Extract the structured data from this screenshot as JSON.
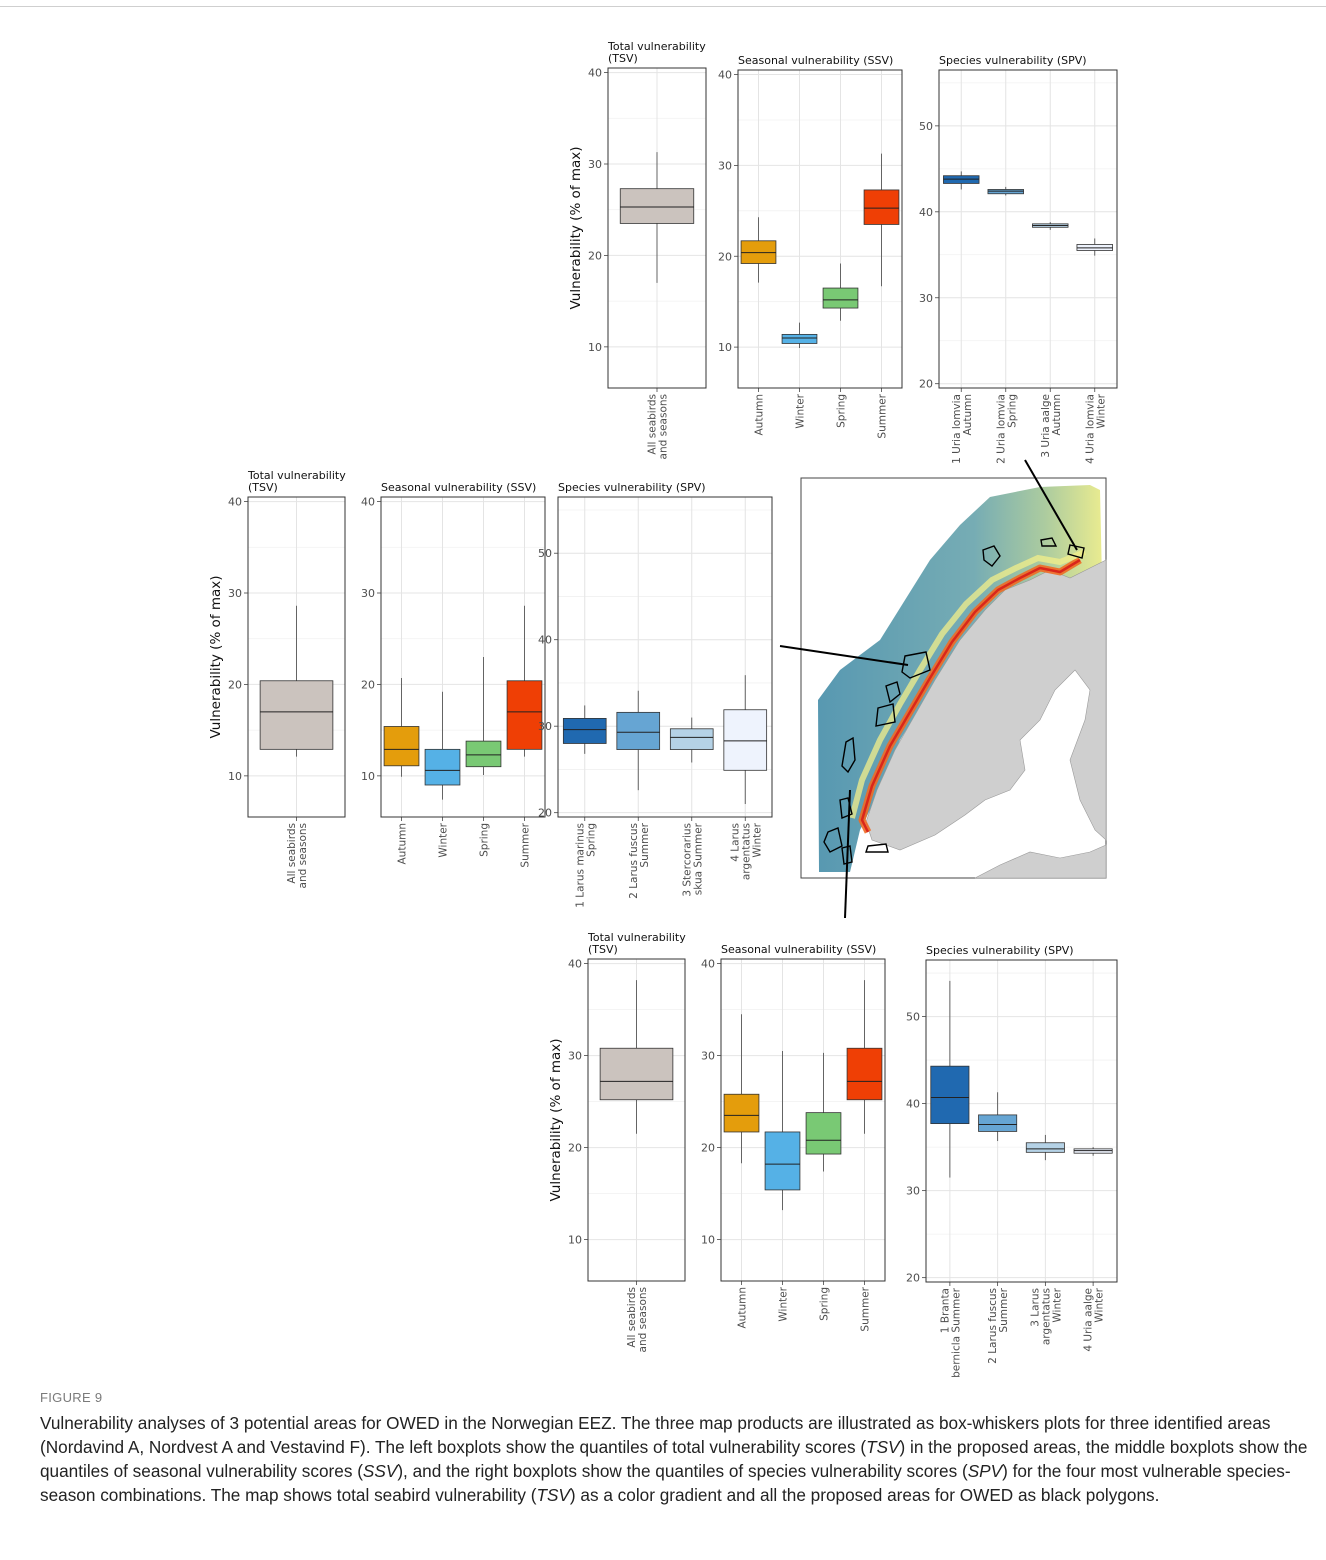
{
  "figure_label": "FIGURE 9",
  "caption": {
    "segments": [
      {
        "t": "Vulnerability analyses of 3 potential areas for OWED in the Norwegian EEZ. The three map products are illustrated as box-whiskers plots for three identified areas (Nordavind A, Nordvest A and Vestavind F). The left boxplots show the quantiles of total vulnerability scores ("
      },
      {
        "t": "TSV",
        "i": true
      },
      {
        "t": ") in the proposed areas, the middle boxplots show the quantiles of seasonal vulnerability scores ("
      },
      {
        "t": "SSV",
        "i": true
      },
      {
        "t": "), and the right boxplots show the quantiles of species vulnerability scores ("
      },
      {
        "t": "SPV",
        "i": true
      },
      {
        "t": ") for the four most vulnerable species-season combinations. The map shows total seabird vulnerability ("
      },
      {
        "t": "TSV",
        "i": true
      },
      {
        "t": ") as a color gradient and all the proposed areas for OWED as black polygons."
      }
    ]
  },
  "colors": {
    "total": "#cbc3be",
    "seasons": [
      "#e49d0c",
      "#55b1e6",
      "#79c974",
      "#ef3f05"
    ],
    "species": [
      "#2069b0",
      "#66a5d3",
      "#b5d2e6",
      "#eef3fd"
    ],
    "panel_border": "#333333",
    "grid": "#e6e6e6",
    "map_sea": "#5f9db2",
    "map_land": "#cfcfcf"
  },
  "chart_data": [
    {
      "group": "top",
      "type": "boxplot",
      "panels": [
        {
          "title": [
            "Total vulnerability",
            "(TSV)"
          ],
          "ylabel": "Vulnerability (% of max)",
          "ylim": [
            5.5,
            40.5
          ],
          "yticks": [
            10,
            20,
            30,
            40
          ],
          "boxes": [
            {
              "label": [
                "All seabirds",
                "and seasons"
              ],
              "q1": 23.5,
              "median": 25.3,
              "q3": 27.3,
              "min": 17.0,
              "max": 31.3,
              "fill": "#cbc3be"
            }
          ]
        },
        {
          "title": [
            "Seasonal vulnerability (SSV)"
          ],
          "ylim": [
            5.5,
            40.5
          ],
          "yticks": [
            10,
            20,
            30,
            40
          ],
          "boxes": [
            {
              "label": [
                "Autumn"
              ],
              "q1": 19.2,
              "median": 20.4,
              "q3": 21.7,
              "min": 17.1,
              "max": 24.3,
              "fill": "#e49d0c"
            },
            {
              "label": [
                "Winter"
              ],
              "q1": 10.4,
              "median": 11.0,
              "q3": 11.4,
              "min": 9.9,
              "max": 12.7,
              "fill": "#55b1e6"
            },
            {
              "label": [
                "Spring"
              ],
              "q1": 14.3,
              "median": 15.2,
              "q3": 16.5,
              "min": 12.9,
              "max": 19.2,
              "fill": "#79c974"
            },
            {
              "label": [
                "Summer"
              ],
              "q1": 23.5,
              "median": 25.3,
              "q3": 27.3,
              "min": 16.7,
              "max": 31.3,
              "fill": "#ef3f05"
            }
          ]
        },
        {
          "title": [
            "Species vulnerability (SPV)"
          ],
          "ylim": [
            19.5,
            56.5
          ],
          "yticks": [
            20,
            30,
            40,
            50
          ],
          "boxes": [
            {
              "label": [
                "1 Uria lomvia",
                "Autumn"
              ],
              "q1": 43.3,
              "median": 43.8,
              "q3": 44.2,
              "min": 42.6,
              "max": 44.7,
              "fill": "#2069b0"
            },
            {
              "label": [
                "2 Uria lomvia",
                "Spring"
              ],
              "q1": 42.1,
              "median": 42.4,
              "q3": 42.6,
              "min": 41.9,
              "max": 42.9,
              "fill": "#66a5d3"
            },
            {
              "label": [
                "3 Uria aalge",
                "Autumn"
              ],
              "q1": 38.2,
              "median": 38.4,
              "q3": 38.6,
              "min": 37.9,
              "max": 38.8,
              "fill": "#b5d2e6"
            },
            {
              "label": [
                "4 Uria lomvia",
                "Winter"
              ],
              "q1": 35.5,
              "median": 35.8,
              "q3": 36.2,
              "min": 34.9,
              "max": 36.9,
              "fill": "#eef3fd"
            }
          ]
        }
      ]
    },
    {
      "group": "middle",
      "type": "boxplot",
      "panels": [
        {
          "title": [
            "Total vulnerability",
            "(TSV)"
          ],
          "ylabel": "Vulnerability (% of max)",
          "ylim": [
            5.5,
            40.5
          ],
          "yticks": [
            10,
            20,
            30,
            40
          ],
          "boxes": [
            {
              "label": [
                "All seabirds",
                "and seasons"
              ],
              "q1": 12.9,
              "median": 17.0,
              "q3": 20.4,
              "min": 12.1,
              "max": 28.6,
              "fill": "#cbc3be"
            }
          ]
        },
        {
          "title": [
            "Seasonal vulnerability (SSV)"
          ],
          "ylim": [
            5.5,
            40.5
          ],
          "yticks": [
            10,
            20,
            30,
            40
          ],
          "boxes": [
            {
              "label": [
                "Autumn"
              ],
              "q1": 11.1,
              "median": 12.9,
              "q3": 15.4,
              "min": 9.9,
              "max": 20.7,
              "fill": "#e49d0c"
            },
            {
              "label": [
                "Winter"
              ],
              "q1": 9.0,
              "median": 10.6,
              "q3": 12.9,
              "min": 7.4,
              "max": 19.2,
              "fill": "#55b1e6"
            },
            {
              "label": [
                "Spring"
              ],
              "q1": 11.0,
              "median": 12.3,
              "q3": 13.8,
              "min": 10.1,
              "max": 23.0,
              "fill": "#79c974"
            },
            {
              "label": [
                "Summer"
              ],
              "q1": 12.9,
              "median": 17.0,
              "q3": 20.4,
              "min": 12.1,
              "max": 28.6,
              "fill": "#ef3f05"
            }
          ]
        },
        {
          "title": [
            "Species vulnerability (SPV)"
          ],
          "ylim": [
            19.5,
            56.5
          ],
          "yticks": [
            20,
            30,
            40,
            50
          ],
          "boxes": [
            {
              "label": [
                "1 Larus marinus",
                "Spring"
              ],
              "q1": 28.0,
              "median": 29.6,
              "q3": 30.9,
              "min": 26.8,
              "max": 32.4,
              "fill": "#2069b0"
            },
            {
              "label": [
                "2 Larus fuscus",
                "Summer"
              ],
              "q1": 27.3,
              "median": 29.3,
              "q3": 31.6,
              "min": 22.6,
              "max": 34.1,
              "fill": "#66a5d3"
            },
            {
              "label": [
                "3 Stercorarius",
                "skua Summer"
              ],
              "q1": 27.3,
              "median": 28.7,
              "q3": 29.7,
              "min": 25.8,
              "max": 31.0,
              "fill": "#b5d2e6"
            },
            {
              "label": [
                "4 Larus",
                "argentatus",
                "Winter"
              ],
              "q1": 24.9,
              "median": 28.3,
              "q3": 31.9,
              "min": 21.0,
              "max": 35.9,
              "fill": "#eef3fd"
            }
          ]
        }
      ]
    },
    {
      "group": "bottom",
      "type": "boxplot",
      "panels": [
        {
          "title": [
            "Total vulnerability",
            "(TSV)"
          ],
          "ylabel": "Vulnerability (% of max)",
          "ylim": [
            5.5,
            40.5
          ],
          "yticks": [
            10,
            20,
            30,
            40
          ],
          "boxes": [
            {
              "label": [
                "All seabirds",
                "and seasons"
              ],
              "q1": 25.2,
              "median": 27.2,
              "q3": 30.8,
              "min": 21.5,
              "max": 38.2,
              "fill": "#cbc3be"
            }
          ]
        },
        {
          "title": [
            "Seasonal vulnerability (SSV)"
          ],
          "ylim": [
            5.5,
            40.5
          ],
          "yticks": [
            10,
            20,
            30,
            40
          ],
          "boxes": [
            {
              "label": [
                "Autumn"
              ],
              "q1": 21.7,
              "median": 23.5,
              "q3": 25.8,
              "min": 18.3,
              "max": 34.5,
              "fill": "#e49d0c"
            },
            {
              "label": [
                "Winter"
              ],
              "q1": 15.4,
              "median": 18.2,
              "q3": 21.7,
              "min": 13.2,
              "max": 30.5,
              "fill": "#55b1e6"
            },
            {
              "label": [
                "Spring"
              ],
              "q1": 19.3,
              "median": 20.8,
              "q3": 23.8,
              "min": 17.4,
              "max": 30.3,
              "fill": "#79c974"
            },
            {
              "label": [
                "Summer"
              ],
              "q1": 25.2,
              "median": 27.2,
              "q3": 30.8,
              "min": 21.5,
              "max": 38.2,
              "fill": "#ef3f05"
            }
          ]
        },
        {
          "title": [
            "Species vulnerability (SPV)"
          ],
          "ylim": [
            19.5,
            56.5
          ],
          "yticks": [
            20,
            30,
            40,
            50
          ],
          "boxes": [
            {
              "label": [
                "1 Branta",
                "bernicla Summer"
              ],
              "q1": 37.7,
              "median": 40.7,
              "q3": 44.3,
              "min": 31.5,
              "max": 54.1,
              "fill": "#2069b0"
            },
            {
              "label": [
                "2 Larus fuscus",
                "Summer"
              ],
              "q1": 36.8,
              "median": 37.6,
              "q3": 38.7,
              "min": 35.7,
              "max": 41.3,
              "fill": "#66a5d3"
            },
            {
              "label": [
                "3 Larus",
                "argentatus",
                "Winter"
              ],
              "q1": 34.4,
              "median": 34.8,
              "q3": 35.5,
              "min": 33.5,
              "max": 36.4,
              "fill": "#b5d2e6"
            },
            {
              "label": [
                "4 Uria aalge",
                "Winter"
              ],
              "q1": 34.3,
              "median": 34.6,
              "q3": 34.8,
              "min": 34.0,
              "max": 35.0,
              "fill": "#eef3fd"
            }
          ]
        }
      ]
    }
  ]
}
